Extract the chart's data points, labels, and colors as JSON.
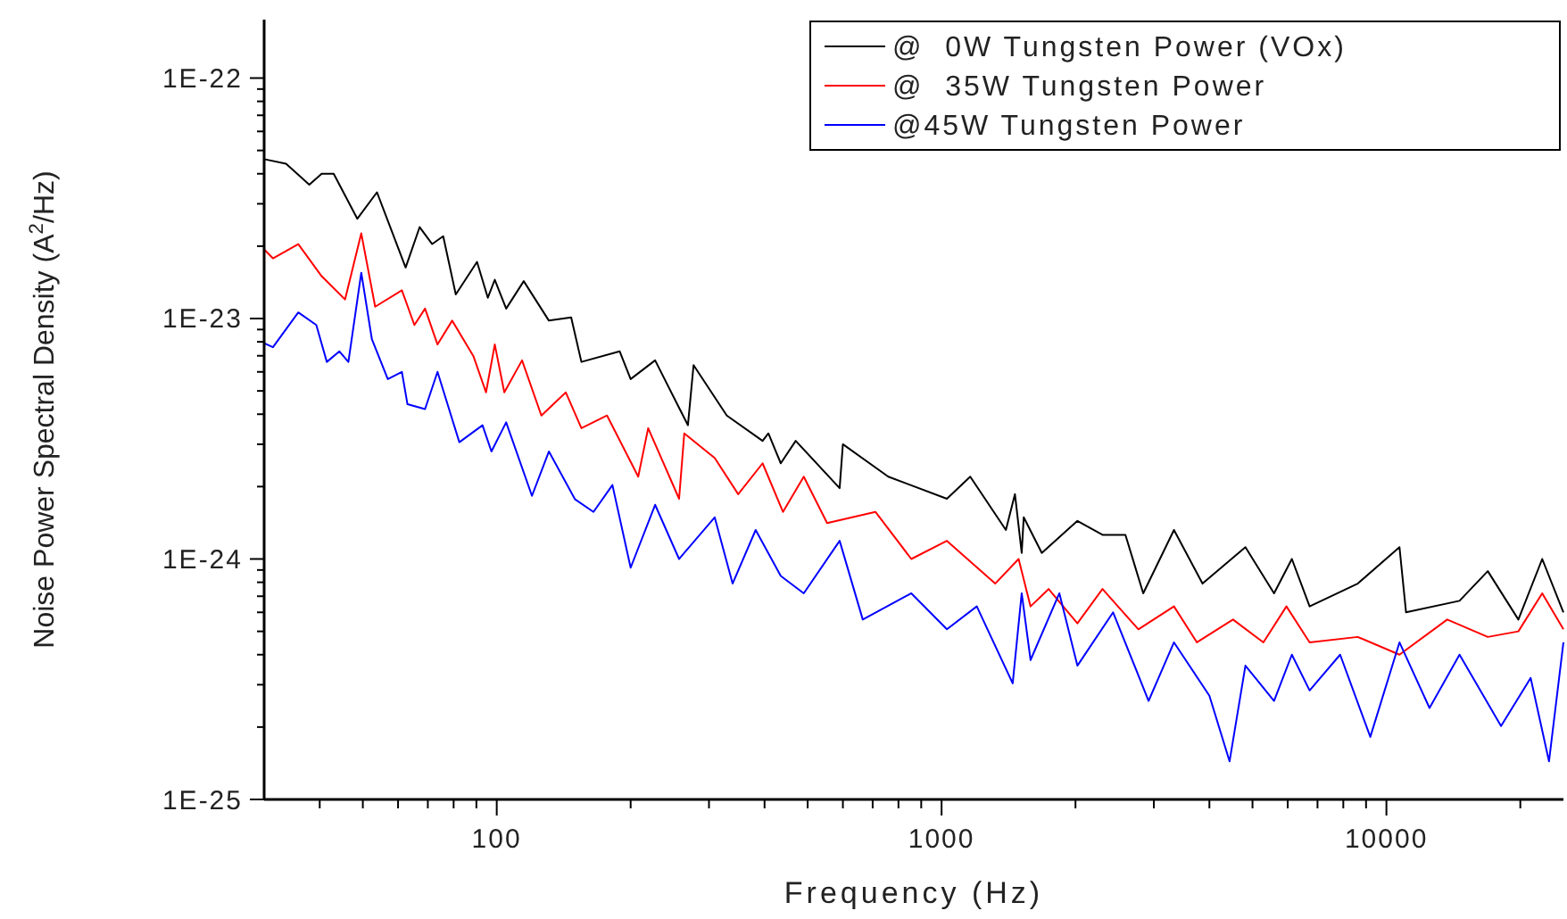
{
  "chart_data": {
    "type": "line",
    "xlabel": "Frequency (Hz)",
    "ylabel": "Noise Power Spectral Density (A$^{2}$/Hz)",
    "log": "xy",
    "grid": false,
    "legend": "top right",
    "line_style": "solid",
    "xlim": [
      30,
      25000
    ],
    "xticks": [
      {
        "value": 40,
        "label": null
      },
      {
        "value": 50,
        "label": null
      },
      {
        "value": 60,
        "label": null
      },
      {
        "value": 70,
        "label": null
      },
      {
        "value": 80,
        "label": null
      },
      {
        "value": 90,
        "label": null
      },
      100,
      {
        "value": 200,
        "label": null
      },
      {
        "value": 300,
        "label": null
      },
      {
        "value": 400,
        "label": null
      },
      {
        "value": 500,
        "label": null
      },
      {
        "value": 600,
        "label": null
      },
      {
        "value": 700,
        "label": null
      },
      {
        "value": 800,
        "label": null
      },
      {
        "value": 900,
        "label": null
      },
      1000,
      {
        "value": 2000,
        "label": null
      },
      {
        "value": 3000,
        "label": null
      },
      {
        "value": 4000,
        "label": null
      },
      {
        "value": 5000,
        "label": null
      },
      {
        "value": 6000,
        "label": null
      },
      {
        "value": 7000,
        "label": null
      },
      {
        "value": 8000,
        "label": null
      },
      {
        "value": 9000,
        "label": null
      },
      10000,
      {
        "value": 20000,
        "label": null
      }
    ],
    "ylim": [
      1e-25,
      1.75e-22
    ],
    "yticks": [
      {
        "value": 1e-25,
        "label": "1E-25"
      },
      {
        "value": 2e-25,
        "label": null
      },
      {
        "value": 3e-25,
        "label": null
      },
      {
        "value": 4e-25,
        "label": null
      },
      {
        "value": 5e-25,
        "label": null
      },
      {
        "value": 6e-25,
        "label": null
      },
      {
        "value": 7e-25,
        "label": null
      },
      {
        "value": 8e-25,
        "label": null
      },
      {
        "value": 9e-25,
        "label": null
      },
      {
        "value": 1e-24,
        "label": "1E-24"
      },
      {
        "value": 2e-24,
        "label": null
      },
      {
        "value": 3e-24,
        "label": null
      },
      {
        "value": 4e-24,
        "label": null
      },
      {
        "value": 5e-24,
        "label": null
      },
      {
        "value": 6e-24,
        "label": null
      },
      {
        "value": 7e-24,
        "label": null
      },
      {
        "value": 8e-24,
        "label": null
      },
      {
        "value": 9e-24,
        "label": null
      },
      {
        "value": 1e-23,
        "label": "1E-23"
      },
      {
        "value": 2e-23,
        "label": null
      },
      {
        "value": 3e-23,
        "label": null
      },
      {
        "value": 4e-23,
        "label": null
      },
      {
        "value": 5e-23,
        "label": null
      },
      {
        "value": 6e-23,
        "label": null
      },
      {
        "value": 7e-23,
        "label": null
      },
      {
        "value": 8e-23,
        "label": null
      },
      {
        "value": 9e-23,
        "label": null
      },
      {
        "value": 1e-22,
        "label": "1E-22"
      }
    ],
    "series": [
      {
        "name": "@  0W Tungsten Power (VOx)",
        "color": "#000000",
        "x": [
          30,
          33.6,
          37.9,
          40.4,
          43,
          48.6,
          53.8,
          62.4,
          67.1,
          71.6,
          75.8,
          80.9,
          90.3,
          95.5,
          99,
          105,
          115,
          131,
          147,
          155,
          189,
          200,
          227,
          269,
          277,
          329,
          396,
          408,
          435,
          470,
          590,
          600,
          759,
          1028,
          1160,
          1395,
          1462,
          1514,
          1530,
          1680,
          2020,
          2300,
          2590,
          2840,
          3330,
          3860,
          4820,
          5590,
          6130,
          6720,
          8620,
          10700,
          11070,
          14600,
          16900,
          19800,
          22400,
          25000
        ],
        "values": [
          4.6e-23,
          4.4e-23,
          3.6e-23,
          4e-23,
          4e-23,
          2.6e-23,
          3.35e-23,
          1.63e-23,
          2.4e-23,
          2.04e-23,
          2.2e-23,
          1.26e-23,
          1.72e-23,
          1.22e-23,
          1.45e-23,
          1.1e-23,
          1.43e-23,
          9.8e-24,
          1.01e-23,
          6.6e-24,
          7.3e-24,
          5.6e-24,
          6.7e-24,
          3.6e-24,
          6.4e-24,
          3.95e-24,
          3.1e-24,
          3.33e-24,
          2.5e-24,
          3.1e-24,
          1.97e-24,
          3e-24,
          2.2e-24,
          1.78e-24,
          2.2e-24,
          1.32e-24,
          1.86e-24,
          1.06e-24,
          1.49e-24,
          1.06e-24,
          1.44e-24,
          1.26e-24,
          1.26e-24,
          7.2e-25,
          1.32e-24,
          7.9e-25,
          1.12e-24,
          7.2e-25,
          1e-24,
          6.35e-25,
          7.9e-25,
          1.12e-24,
          6e-25,
          6.7e-25,
          8.9e-25,
          5.6e-25,
          1e-24,
          6e-25
        ]
      },
      {
        "name": "@  35W Tungsten Power",
        "color": "#ff0000",
        "x": [
          30,
          31.4,
          35.8,
          40.4,
          45.6,
          49.6,
          53.3,
          61.2,
          65.3,
          69,
          73.6,
          79.4,
          88.7,
          94.6,
          99,
          104,
          114,
          126,
          143,
          155,
          177,
          208,
          219,
          257,
          264,
          309,
          349,
          396,
          440,
          490,
          553,
          710,
          855,
          1028,
          1320,
          1490,
          1585,
          1740,
          2020,
          2300,
          2770,
          3330,
          3750,
          4520,
          5290,
          5960,
          6720,
          8620,
          10700,
          13700,
          16900,
          19800,
          22400,
          25000
        ],
        "values": [
          1.94e-23,
          1.78e-23,
          2.04e-23,
          1.5e-23,
          1.2e-23,
          2.26e-23,
          1.12e-23,
          1.31e-23,
          9.4e-24,
          1.1e-23,
          7.8e-24,
          9.8e-24,
          6.95e-24,
          4.93e-24,
          7.8e-24,
          4.93e-24,
          6.7e-24,
          3.95e-24,
          4.93e-24,
          3.5e-24,
          3.95e-24,
          2.2e-24,
          3.5e-24,
          1.78e-24,
          3.33e-24,
          2.63e-24,
          1.86e-24,
          2.5e-24,
          1.57e-24,
          2.2e-24,
          1.41e-24,
          1.57e-24,
          1e-24,
          1.19e-24,
          7.9e-25,
          1e-24,
          6.35e-25,
          7.5e-25,
          5.4e-25,
          7.5e-25,
          5.1e-25,
          6.35e-25,
          4.5e-25,
          5.6e-25,
          4.5e-25,
          6.35e-25,
          4.5e-25,
          4.74e-25,
          4e-25,
          5.6e-25,
          4.74e-25,
          5e-25,
          7.2e-25,
          5.1e-25
        ]
      },
      {
        "name": "@45W Tungsten Power",
        "color": "#0000ff",
        "x": [
          30,
          31.4,
          35.8,
          39.3,
          41.5,
          44.3,
          46.4,
          49.6,
          52.4,
          56.9,
          61.2,
          63,
          69,
          73.6,
          82.4,
          92.9,
          97.3,
          105,
          120,
          131,
          150,
          165,
          182,
          200,
          227,
          257,
          309,
          339,
          382,
          435,
          490,
          590,
          665,
          855,
          1028,
          1200,
          1445,
          1514,
          1585,
          1840,
          2020,
          2430,
          2920,
          3330,
          4000,
          4440,
          4820,
          5590,
          6130,
          6720,
          7870,
          9200,
          10700,
          12500,
          14600,
          18100,
          21100,
          23200,
          25000
        ],
        "values": [
          7.9e-24,
          7.6e-24,
          1.06e-23,
          9.4e-24,
          6.6e-24,
          7.3e-24,
          6.6e-24,
          1.55e-23,
          8.2e-24,
          5.6e-24,
          6e-24,
          4.4e-24,
          4.2e-24,
          6e-24,
          3.06e-24,
          3.6e-24,
          2.8e-24,
          3.7e-24,
          1.83e-24,
          2.8e-24,
          1.77e-24,
          1.57e-24,
          2.03e-24,
          9.2e-25,
          1.68e-24,
          1e-24,
          1.49e-24,
          7.9e-25,
          1.32e-24,
          8.5e-25,
          7.2e-25,
          1.19e-24,
          5.6e-25,
          7.2e-25,
          5.1e-25,
          6.35e-25,
          3.04e-25,
          7.2e-25,
          3.8e-25,
          7.2e-25,
          3.6e-25,
          6e-25,
          2.57e-25,
          4.5e-25,
          2.7e-25,
          1.44e-25,
          3.6e-25,
          2.57e-25,
          4e-25,
          2.84e-25,
          4e-25,
          1.82e-25,
          4.5e-25,
          2.4e-25,
          4e-25,
          2.02e-25,
          3.2e-25,
          1.44e-25,
          4.5e-25
        ]
      }
    ]
  }
}
